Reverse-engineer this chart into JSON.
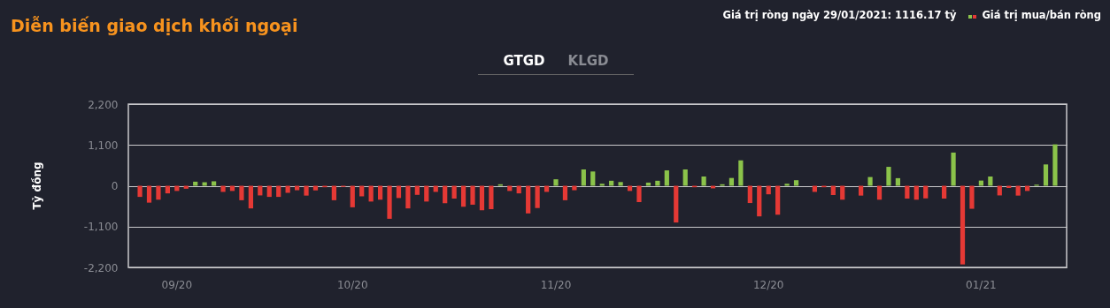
{
  "chart_data": {
    "type": "bar",
    "title": "Diễn biến giao dịch khối ngoại",
    "annotations": [
      "Giá trị ròng ngày 29/01/2021: 1116.17 tỷ",
      "GTGD",
      "KLGD"
    ],
    "ylabel": "Tỷ đồng",
    "categories": [
      null,
      null,
      null,
      null,
      "09/20",
      null,
      null,
      null,
      null,
      null,
      null,
      null,
      null,
      null,
      null,
      null,
      null,
      null,
      null,
      null,
      null,
      null,
      null,
      "10/20",
      null,
      null,
      null,
      null,
      null,
      null,
      null,
      null,
      null,
      null,
      null,
      null,
      null,
      null,
      null,
      null,
      null,
      null,
      null,
      null,
      null,
      "11/20",
      null,
      null,
      null,
      null,
      null,
      null,
      null,
      null,
      null,
      null,
      null,
      null,
      null,
      null,
      null,
      null,
      null,
      null,
      null,
      null,
      null,
      null,
      "12/20",
      null,
      null,
      null,
      null,
      null,
      null,
      null,
      null,
      null,
      null,
      null,
      null,
      null,
      null,
      null,
      null,
      null,
      null,
      null,
      null,
      null,
      null,
      "01/21",
      null,
      null,
      null,
      null,
      null,
      null,
      null,
      null
    ],
    "series": [
      {
        "name": "Giá trị mua/bán ròng",
        "colors": [
          "#e53935",
          "#e53935",
          "#e53935",
          "#e53935",
          "#e53935",
          "#e53935",
          "#8bc34a",
          "#8bc34a",
          "#8bc34a",
          "#e53935",
          "#e53935",
          "#e53935",
          "#e53935",
          "#e53935",
          "#e53935",
          "#e53935",
          "#e53935",
          "#e53935",
          "#e53935",
          "#e53935",
          "#e53935",
          "#e53935",
          "#e53935",
          "#e53935",
          "#e53935",
          "#e53935",
          "#e53935",
          "#e53935",
          "#e53935",
          "#e53935",
          "#e53935",
          "#e53935",
          "#e53935",
          "#e53935",
          "#e53935",
          "#e53935",
          "#e53935",
          "#e53935",
          "#e53935",
          "#8bc34a",
          "#e53935",
          "#e53935",
          "#e53935",
          "#e53935",
          "#e53935",
          "#8bc34a",
          "#e53935",
          "#e53935",
          "#8bc34a",
          "#8bc34a",
          "#8bc34a",
          "#8bc34a",
          "#8bc34a",
          "#e53935",
          "#e53935",
          "#8bc34a",
          "#8bc34a",
          "#8bc34a",
          "#e53935",
          "#8bc34a",
          "#e53935",
          "#8bc34a",
          "#e53935",
          "#8bc34a",
          "#8bc34a",
          "#8bc34a",
          "#e53935",
          "#e53935",
          "#e53935",
          "#e53935",
          "#8bc34a",
          "#8bc34a",
          "#e53935",
          "#e53935",
          "#e53935",
          "#e53935",
          "#e53935",
          "#e53935",
          "#e53935",
          "#8bc34a",
          "#e53935",
          "#8bc34a",
          "#8bc34a",
          "#e53935",
          "#e53935",
          "#e53935",
          "#e53935",
          "#e53935",
          "#8bc34a",
          "#e53935",
          "#e53935",
          "#8bc34a",
          "#8bc34a",
          "#e53935",
          "#e53935",
          "#e53935",
          "#e53935",
          "#8bc34a",
          "#8bc34a",
          "#8bc34a"
        ],
        "values": [
          -300,
          -455,
          -375,
          -205,
          -140,
          -80,
          110,
          95,
          120,
          -165,
          -140,
          -390,
          -610,
          -260,
          -300,
          -300,
          -190,
          -120,
          -265,
          -125,
          -40,
          -390,
          -30,
          -580,
          -285,
          -425,
          -375,
          -890,
          -330,
          -610,
          -245,
          -425,
          -165,
          -470,
          -345,
          -565,
          -510,
          -660,
          -630,
          40,
          -140,
          -205,
          -745,
          -600,
          -165,
          175,
          -390,
          -120,
          440,
          385,
          55,
          135,
          100,
          -140,
          -440,
          85,
          135,
          415,
          -990,
          440,
          -40,
          250,
          -70,
          40,
          210,
          685,
          -465,
          -825,
          -230,
          -780,
          55,
          150,
          0,
          -165,
          -40,
          -250,
          -375,
          0,
          -265,
          235,
          -375,
          510,
          205,
          -345,
          -375,
          -340,
          0,
          -345,
          895,
          -2120,
          -620,
          140,
          250,
          -260,
          -60,
          -265,
          -140,
          30,
          575,
          1116.17
        ]
      }
    ],
    "ylim": [
      -2200,
      2200
    ],
    "yticks": [
      {
        "value": -2200,
        "label": "-2,200"
      },
      {
        "value": -1100,
        "label": "-1,100"
      },
      0,
      {
        "value": 1100,
        "label": "1,100"
      },
      {
        "value": 2200,
        "label": "2,200"
      }
    ],
    "grid": "y",
    "legend": "top right"
  }
}
